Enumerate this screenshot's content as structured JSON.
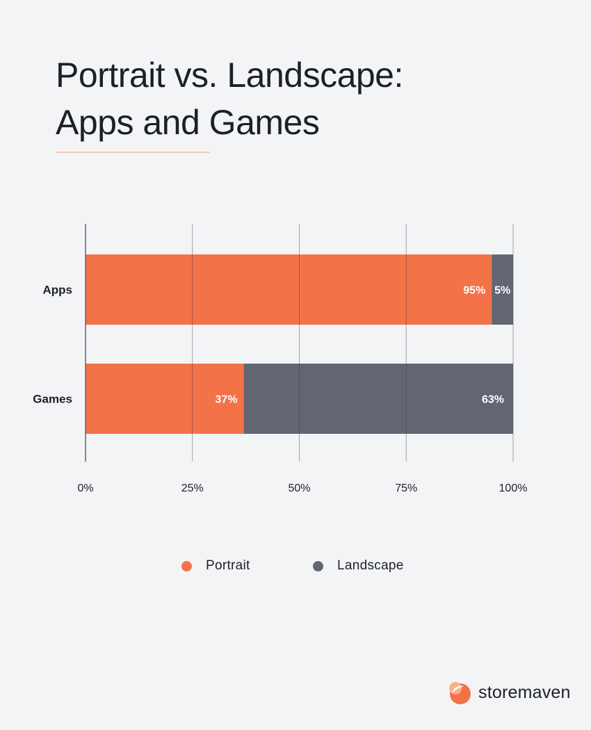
{
  "title": {
    "line1": "Portrait vs. Landscape:",
    "line2": "Apps and Games"
  },
  "chart_data": {
    "type": "bar",
    "orientation": "horizontal",
    "stacked": true,
    "categories": [
      "Apps",
      "Games"
    ],
    "series": [
      {
        "name": "Portrait",
        "values": [
          95,
          37
        ],
        "labels": [
          "95%",
          "37%"
        ],
        "color": "#f37247"
      },
      {
        "name": "Landscape",
        "values": [
          5,
          63
        ],
        "labels": [
          "5%",
          "63%"
        ],
        "color": "#626673"
      }
    ],
    "xlim": [
      0,
      100
    ],
    "xticks": [
      0,
      25,
      50,
      75,
      100
    ],
    "xtick_labels": [
      "0%",
      "25%",
      "50%",
      "75%",
      "100%"
    ],
    "grid": true,
    "legend_position": "bottom-center"
  },
  "legend": [
    {
      "label": "Portrait",
      "color": "#f37247"
    },
    {
      "label": "Landscape",
      "color": "#626673"
    }
  ],
  "brand": {
    "name": "storemaven",
    "logo_icon": "storemaven-logo-icon",
    "logo_colors": [
      "#f37247",
      "#fbb089",
      "#ffffff"
    ]
  }
}
